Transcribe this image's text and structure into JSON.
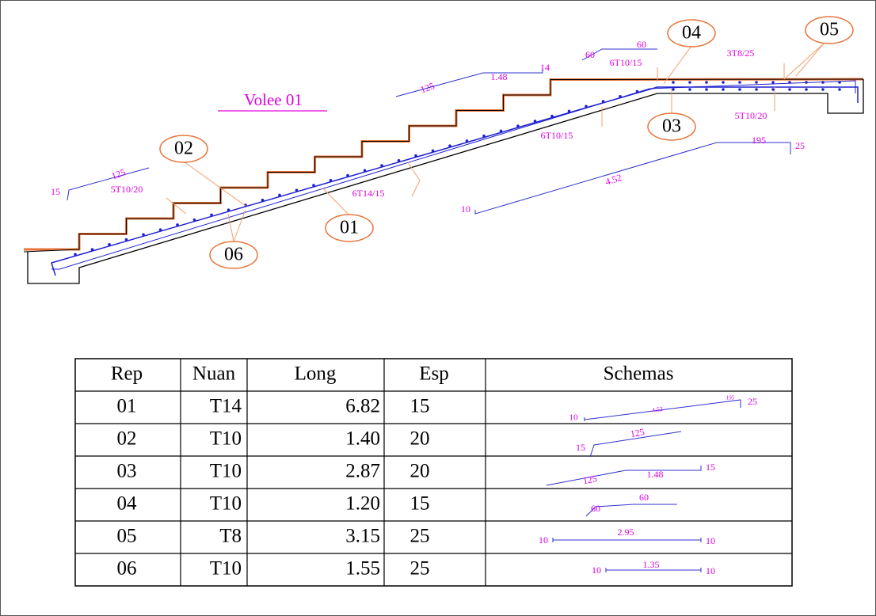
{
  "drawing": {
    "title": "Volee 01",
    "markers": [
      "01",
      "02",
      "03",
      "04",
      "05",
      "06"
    ],
    "annotations": [
      "125",
      "15",
      "5T10/20",
      "6T14/15",
      "6T10/15",
      "125",
      "1.48",
      "14",
      "60",
      "60",
      "6T10/15",
      "3T8/25",
      "5T10/20",
      "195",
      "25",
      "4.52",
      "10"
    ]
  },
  "table": {
    "header": [
      "Rep",
      "Nuan",
      "Long",
      "Esp",
      "Schemas"
    ],
    "rows": [
      [
        "01",
        "T14",
        "6.82",
        "15"
      ],
      [
        "02",
        "T10",
        "1.40",
        "20"
      ],
      [
        "03",
        "T10",
        "2.87",
        "20"
      ],
      [
        "04",
        "T10",
        "1.20",
        "15"
      ],
      [
        "05",
        "T8",
        "3.15",
        "25"
      ],
      [
        "06",
        "T10",
        "1.55",
        "25"
      ]
    ],
    "schemas": [
      [
        "10",
        "4.52",
        "195",
        "25"
      ],
      [
        "15",
        "125"
      ],
      [
        "125",
        "1.48",
        "15"
      ],
      [
        "60",
        "60"
      ],
      [
        "10",
        "2.95",
        "10"
      ],
      [
        "10",
        "1.35",
        "10"
      ]
    ]
  }
}
